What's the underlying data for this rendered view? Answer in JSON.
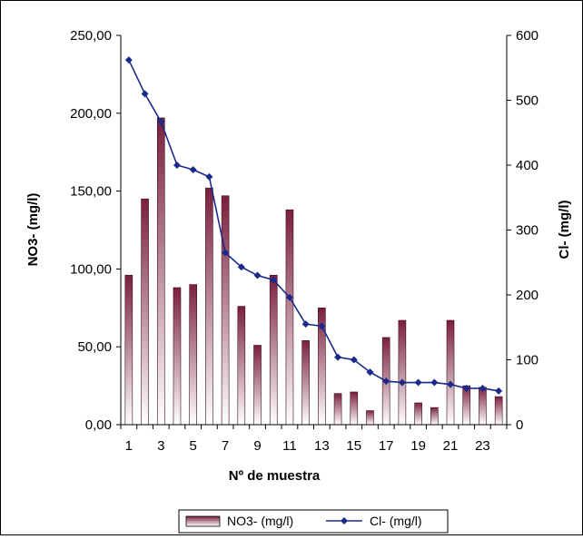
{
  "chart_data": {
    "type": "bar",
    "title": "",
    "xlabel": "Nº de muestra",
    "ylabel_left": "NO3- (mg/l)",
    "ylabel_right": "Cl- (mg/l)",
    "categories": [
      "1",
      "2",
      "3",
      "4",
      "5",
      "6",
      "7",
      "8",
      "9",
      "10",
      "11",
      "12",
      "13",
      "14",
      "15",
      "16",
      "17",
      "18",
      "19",
      "20",
      "21",
      "22",
      "23",
      "24"
    ],
    "x_tick_labels": [
      "1",
      "3",
      "5",
      "7",
      "9",
      "11",
      "13",
      "15",
      "17",
      "19",
      "21",
      "23"
    ],
    "y_left_ticks": [
      "0,00",
      "50,00",
      "100,00",
      "150,00",
      "200,00",
      "250,00"
    ],
    "y_right_ticks": [
      "0",
      "100",
      "200",
      "300",
      "400",
      "500",
      "600"
    ],
    "ylim_left": [
      0,
      250
    ],
    "ylim_right": [
      0,
      600
    ],
    "grid": false,
    "legend_position": "bottom",
    "series": [
      {
        "name": "NO3- (mg/l)",
        "type": "bar",
        "axis": "left",
        "color_top": "#7a1f3d",
        "color_bottom": "#ffffff",
        "values": [
          96,
          145,
          197,
          88,
          90,
          152,
          147,
          76,
          51,
          96,
          138,
          54,
          75,
          20,
          21,
          9,
          56,
          67,
          14,
          11,
          67,
          25,
          24,
          18
        ]
      },
      {
        "name": "Cl- (mg/l)",
        "type": "line",
        "axis": "right",
        "color": "#1a2a8a",
        "marker": "diamond",
        "values": [
          562,
          510,
          467,
          400,
          393,
          382,
          265,
          243,
          230,
          223,
          196,
          155,
          152,
          104,
          100,
          81,
          67,
          65,
          65,
          65,
          62,
          56,
          56,
          52
        ]
      }
    ]
  }
}
